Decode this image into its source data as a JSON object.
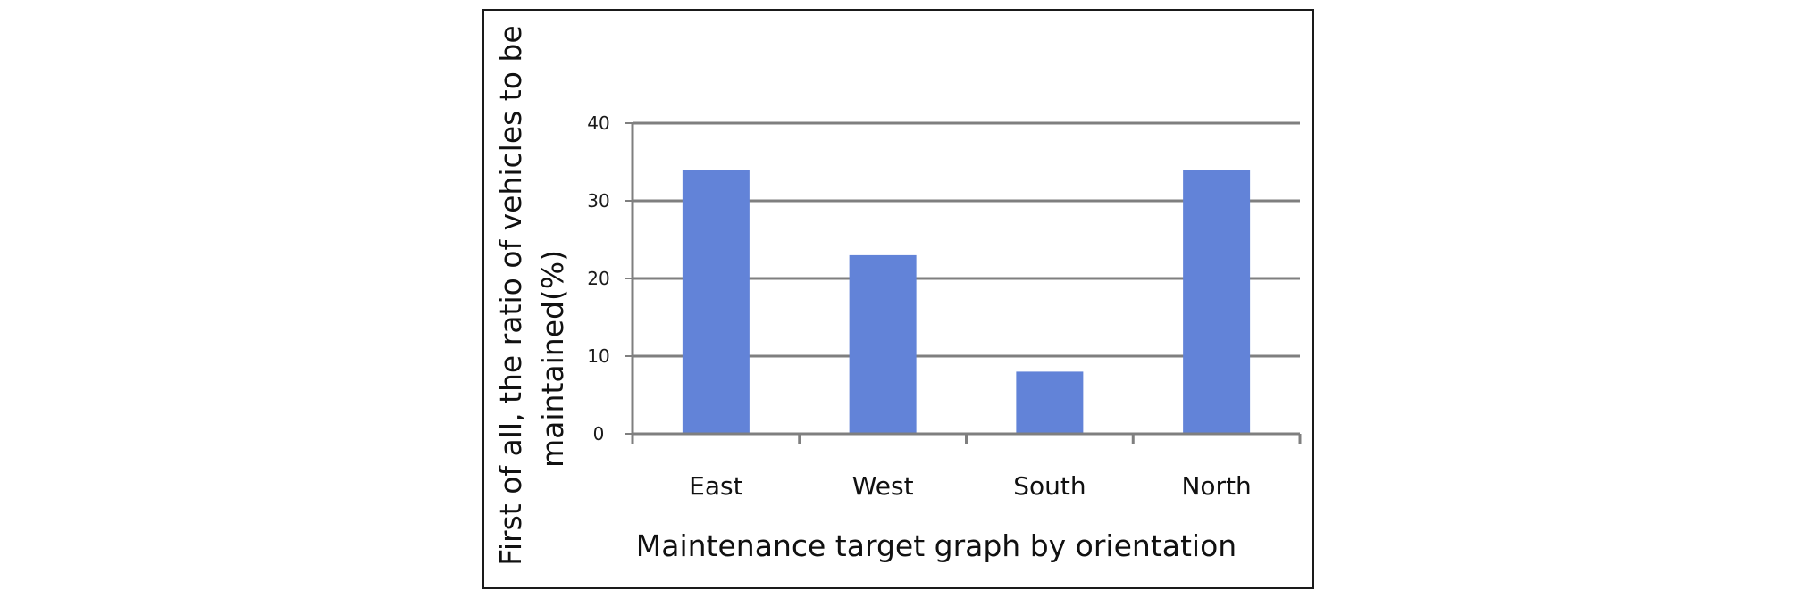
{
  "chart_data": {
    "type": "bar",
    "categories": [
      "East",
      "West",
      "South",
      "North"
    ],
    "series": [
      {
        "values": [
          34,
          23,
          8,
          34
        ]
      }
    ],
    "xlabel": "Maintenance target graph by orientation",
    "ylabel_lines": [
      "First of all, the ratio of vehicles to be",
      "maintained(%)"
    ],
    "ylim": [
      0,
      40
    ],
    "yticks": [
      0,
      10,
      20,
      30,
      40
    ],
    "grid": true,
    "legend": "none",
    "colors": {
      "bar": "#6283D8",
      "grid": "#7f7f7f",
      "axis": "#7f7f7f",
      "frame": "#1a1a1a"
    }
  }
}
